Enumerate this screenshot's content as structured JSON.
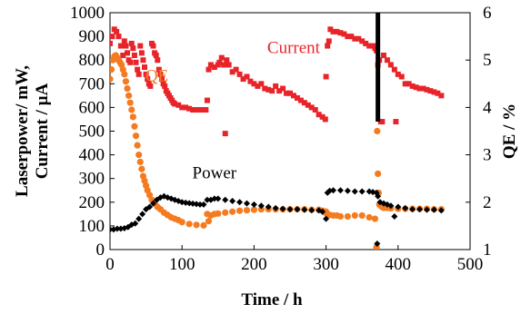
{
  "chart_data": {
    "type": "scatter",
    "xlabel": "Time / h",
    "ylabel_left": [
      "Laserpower/ mW,",
      "Current / µA"
    ],
    "ylabel_right": "QE / %",
    "xlim": [
      0,
      500
    ],
    "ylim_left": [
      0,
      1000
    ],
    "ylim_right": [
      1,
      6
    ],
    "x_ticks": [
      0,
      100,
      200,
      300,
      400,
      500
    ],
    "y_ticks_left": [
      0,
      100,
      200,
      300,
      400,
      500,
      600,
      700,
      800,
      900,
      1000
    ],
    "y_ticks_right": [
      1,
      2,
      3,
      4,
      5,
      6
    ],
    "grid": false,
    "series": [
      {
        "name": "Current",
        "axis": "left",
        "color": "#e8242b",
        "marker": "square",
        "x": [
          0,
          3,
          6,
          9,
          12,
          15,
          18,
          20,
          22,
          24,
          26,
          28,
          30,
          32,
          34,
          36,
          38,
          40,
          42,
          44,
          46,
          48,
          50,
          52,
          54,
          56,
          58,
          60,
          62,
          64,
          66,
          68,
          70,
          72,
          74,
          76,
          78,
          80,
          82,
          84,
          86,
          88,
          90,
          95,
          100,
          105,
          110,
          115,
          120,
          125,
          130,
          133,
          135,
          137,
          140,
          145,
          150,
          152,
          155,
          158,
          160,
          162,
          165,
          170,
          175,
          180,
          185,
          190,
          195,
          200,
          205,
          210,
          215,
          220,
          225,
          230,
          235,
          240,
          245,
          250,
          255,
          260,
          265,
          270,
          275,
          280,
          285,
          290,
          295,
          299,
          300,
          302,
          304,
          306,
          310,
          315,
          320,
          325,
          330,
          335,
          340,
          345,
          350,
          355,
          360,
          365,
          368,
          370,
          372,
          374,
          376,
          378,
          380,
          385,
          390,
          395,
          397,
          400,
          405,
          410,
          415,
          420,
          425,
          430,
          435,
          440,
          445,
          450,
          455,
          460
        ],
        "y": [
          870,
          900,
          930,
          920,
          900,
          860,
          820,
          880,
          860,
          830,
          800,
          790,
          870,
          850,
          820,
          790,
          760,
          740,
          860,
          830,
          800,
          770,
          740,
          720,
          700,
          690,
          870,
          860,
          830,
          820,
          800,
          760,
          740,
          720,
          700,
          690,
          670,
          660,
          650,
          640,
          630,
          620,
          615,
          610,
          600,
          600,
          595,
          590,
          590,
          590,
          590,
          590,
          630,
          760,
          780,
          770,
          780,
          790,
          810,
          780,
          490,
          800,
          780,
          750,
          760,
          740,
          720,
          730,
          710,
          700,
          690,
          700,
          680,
          675,
          670,
          690,
          670,
          680,
          660,
          660,
          650,
          640,
          630,
          620,
          610,
          600,
          590,
          570,
          560,
          550,
          730,
          860,
          880,
          930,
          920,
          920,
          915,
          910,
          900,
          900,
          890,
          890,
          880,
          870,
          860,
          860,
          850,
          840,
          780,
          800,
          540,
          540,
          820,
          800,
          780,
          760,
          540,
          740,
          730,
          700,
          700,
          690,
          685,
          680,
          680,
          675,
          670,
          665,
          660,
          650
        ]
      },
      {
        "name": "QE",
        "axis": "right",
        "color": "#f47b20",
        "marker": "circle",
        "x": [
          0,
          2,
          4,
          6,
          8,
          10,
          12,
          14,
          16,
          18,
          20,
          22,
          24,
          26,
          28,
          30,
          32,
          34,
          36,
          38,
          40,
          42,
          44,
          46,
          48,
          50,
          52,
          55,
          58,
          62,
          66,
          70,
          75,
          80,
          85,
          90,
          95,
          100,
          110,
          120,
          130,
          135,
          137,
          140,
          145,
          150,
          160,
          170,
          180,
          190,
          200,
          210,
          220,
          230,
          240,
          250,
          260,
          270,
          280,
          290,
          295,
          299,
          300,
          302,
          305,
          310,
          315,
          320,
          330,
          340,
          350,
          360,
          368,
          370,
          371,
          372,
          373,
          374,
          376,
          378,
          380,
          385,
          390,
          400,
          410,
          420,
          430,
          440,
          450,
          460
        ],
        "y": [
          4.6,
          4.8,
          5.0,
          5.08,
          5.1,
          5.05,
          5.0,
          4.95,
          4.9,
          4.8,
          4.7,
          4.55,
          4.4,
          4.25,
          4.1,
          3.95,
          3.8,
          3.6,
          3.4,
          3.2,
          3.0,
          2.85,
          2.7,
          2.55,
          2.45,
          2.35,
          2.25,
          2.15,
          2.05,
          1.97,
          1.9,
          1.85,
          1.78,
          1.73,
          1.68,
          1.65,
          1.62,
          1.58,
          1.54,
          1.52,
          1.51,
          1.75,
          1.6,
          1.72,
          1.75,
          1.76,
          1.78,
          1.8,
          1.82,
          1.83,
          1.84,
          1.85,
          1.85,
          1.85,
          1.85,
          1.85,
          1.85,
          1.85,
          1.84,
          1.84,
          1.82,
          1.78,
          1.8,
          1.75,
          1.73,
          1.72,
          1.72,
          1.7,
          1.7,
          1.72,
          1.72,
          1.68,
          1.65,
          1.05,
          3.5,
          2.6,
          2.2,
          1.95,
          1.92,
          1.9,
          1.88,
          1.88,
          1.87,
          1.86,
          1.86,
          1.86,
          1.86,
          1.86,
          1.85,
          1.85
        ]
      },
      {
        "name": "Power",
        "axis": "left",
        "color": "#000000",
        "marker": "diamond",
        "x": [
          0,
          5,
          10,
          15,
          20,
          25,
          30,
          35,
          40,
          45,
          50,
          55,
          60,
          65,
          70,
          75,
          80,
          85,
          90,
          95,
          100,
          105,
          110,
          115,
          120,
          125,
          130,
          135,
          140,
          145,
          150,
          160,
          170,
          180,
          190,
          200,
          210,
          220,
          230,
          240,
          250,
          260,
          270,
          280,
          290,
          295,
          300,
          302,
          305,
          310,
          320,
          330,
          340,
          350,
          360,
          365,
          370,
          371,
          372,
          375,
          380,
          385,
          390,
          395,
          400,
          410,
          420,
          430,
          440,
          450,
          460
        ],
        "y": [
          85,
          85,
          88,
          88,
          90,
          95,
          105,
          110,
          130,
          150,
          170,
          180,
          195,
          210,
          220,
          225,
          220,
          215,
          210,
          205,
          200,
          198,
          196,
          194,
          192,
          190,
          190,
          210,
          210,
          215,
          215,
          210,
          205,
          200,
          195,
          190,
          185,
          180,
          175,
          172,
          170,
          170,
          168,
          166,
          165,
          160,
          130,
          240,
          248,
          250,
          250,
          248,
          245,
          245,
          245,
          243,
          240,
          25,
          225,
          200,
          195,
          190,
          185,
          140,
          180,
          175,
          170,
          170,
          168,
          168,
          165
        ]
      }
    ],
    "annotations": [
      {
        "text": "Current",
        "x": 255,
        "y": 830,
        "axis": "left",
        "color": "#e8242b"
      },
      {
        "text": "QE",
        "x": 65,
        "y": 4.55,
        "axis": "right",
        "color": "#f47b20"
      },
      {
        "text": "Power",
        "x": 145,
        "y": 300,
        "axis": "left",
        "color": "#000000"
      }
    ],
    "vertical_marker": {
      "x": 372,
      "y_from": 540,
      "y_to": 1000,
      "axis": "left",
      "color": "#000000"
    }
  }
}
